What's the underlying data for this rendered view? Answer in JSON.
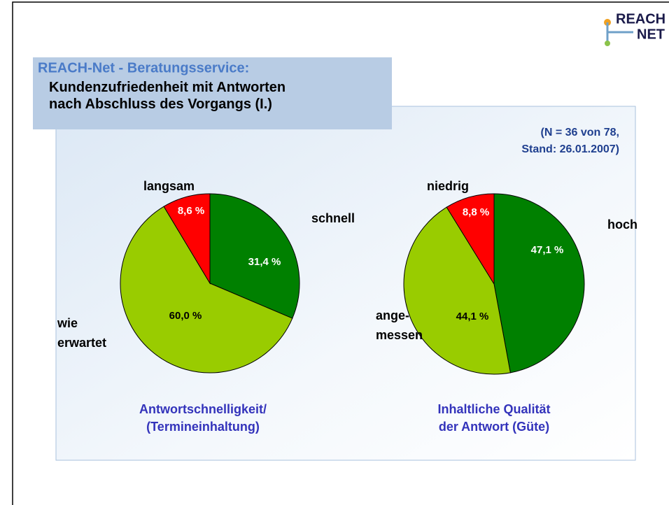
{
  "header": {
    "title": "REACH-Net - Beratungsservice:",
    "subtitle": "Kundenzufriedenheit mit Antworten\nnach Abschluss des Vorgangs (I.)"
  },
  "logo": {
    "line1": "REACH",
    "line2": "NET"
  },
  "note": "(N = 36 von 78,\nStand: 26.01.2007)",
  "chart_data": [
    {
      "type": "pie",
      "title": "Antwortschnelligkeit/\n(Termineinhaltung)",
      "categories": [
        "schnell",
        "wie\nerwartet",
        "langsam"
      ],
      "values": [
        31.4,
        60.0,
        8.6
      ],
      "value_labels": [
        "31,4 %",
        "60,0 %",
        "8,6 %"
      ],
      "colors": [
        "#008000",
        "#99cc00",
        "#ff0000"
      ]
    },
    {
      "type": "pie",
      "title": "Inhaltliche Qualität\nder Antwort (Güte)",
      "categories": [
        "hoch",
        "ange-\nmessen",
        "niedrig"
      ],
      "values": [
        47.1,
        44.1,
        8.8
      ],
      "value_labels": [
        "47,1 %",
        "44,1 %",
        "8,8 %"
      ],
      "colors": [
        "#008000",
        "#99cc00",
        "#ff0000"
      ]
    }
  ]
}
